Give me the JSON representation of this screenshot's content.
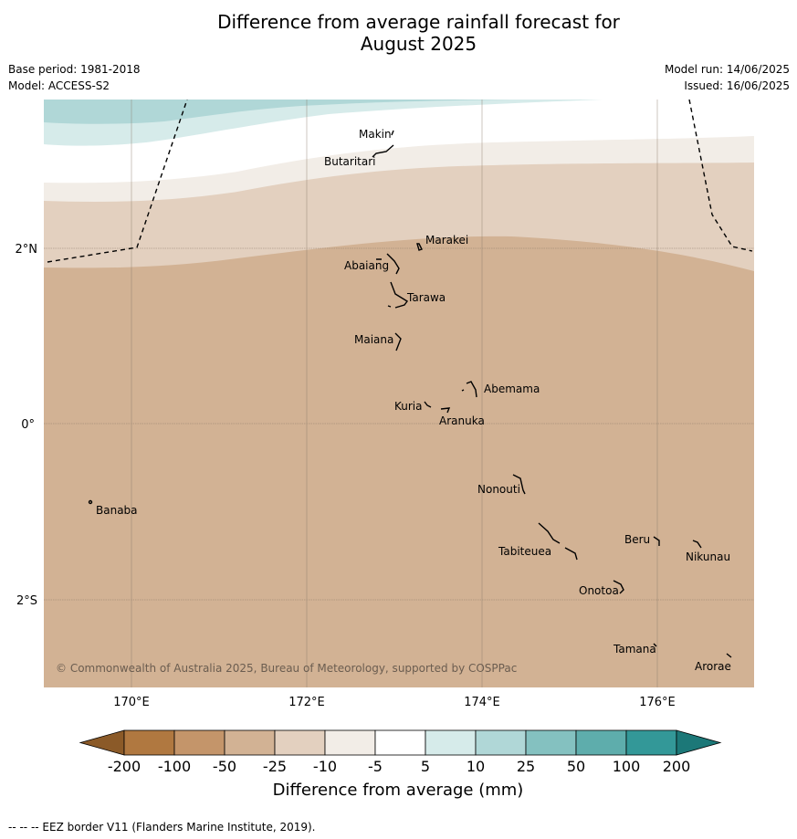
{
  "title_line1": "Difference from average rainfall forecast for",
  "title_line2": "August 2025",
  "base_period": "Base period: 1981-2018",
  "model": "Model: ACCESS-S2",
  "model_run": "Model run: 14/06/2025",
  "issued": "Issued: 16/06/2025",
  "copyright": "© Commonwealth of Australia 2025, Bureau of Meteorology, supported by COSPPac",
  "axes": {
    "lon_ticks": [
      "170°E",
      "172°E",
      "174°E",
      "176°E"
    ],
    "lat_ticks": [
      "2°N",
      "0°",
      "2°S"
    ]
  },
  "islands": [
    {
      "name": "Makin"
    },
    {
      "name": "Butaritari"
    },
    {
      "name": "Marakei"
    },
    {
      "name": "Abaiang"
    },
    {
      "name": "Tarawa"
    },
    {
      "name": "Maiana"
    },
    {
      "name": "Abemama"
    },
    {
      "name": "Kuria"
    },
    {
      "name": "Aranuka"
    },
    {
      "name": "Nonouti"
    },
    {
      "name": "Banaba"
    },
    {
      "name": "Beru"
    },
    {
      "name": "Tabiteuea"
    },
    {
      "name": "Nikunau"
    },
    {
      "name": "Onotoa"
    },
    {
      "name": "Tamana"
    },
    {
      "name": "Arorae"
    }
  ],
  "legend": {
    "labels": [
      "-200",
      "-100",
      "-50",
      "-25",
      "-10",
      "-5",
      "5",
      "10",
      "25",
      "50",
      "100",
      "200"
    ],
    "colors": [
      "#8b5a28",
      "#b07840",
      "#c4956a",
      "#d2b294",
      "#e3d0bf",
      "#f2ede7",
      "#ffffff",
      "#d6ebea",
      "#b0d7d7",
      "#84c1c0",
      "#5eadac",
      "#339898",
      "#1c7878"
    ],
    "title": "Difference from average (mm)"
  },
  "footnote": "-- -- -- EEZ border V11 (Flanders Marine Institute, 2019)."
}
